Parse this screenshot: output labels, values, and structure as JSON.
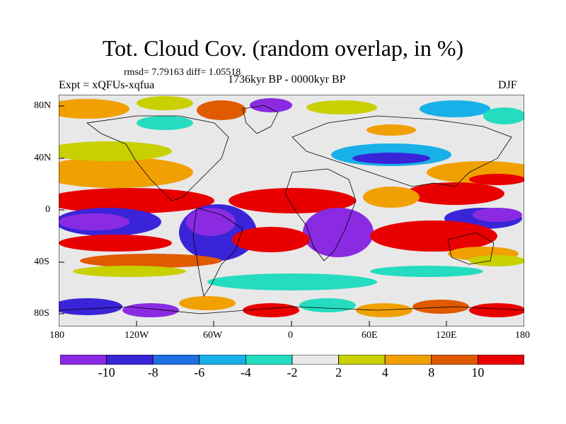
{
  "title": "Tot. Cloud Cov. (random overlap, in %)",
  "stats": "rmsd= 7.79163 diff= 1.05518",
  "expt": "Expt = xQFUs-xqfua",
  "period": "1736kyr BP - 0000kyr BP",
  "season": "DJF",
  "lat_ticks": [
    "80N",
    "40N",
    "0",
    "40S",
    "80S"
  ],
  "lon_ticks": [
    "180",
    "120W",
    "60W",
    "0",
    "60E",
    "120E",
    "180"
  ],
  "colorbar": {
    "colors": [
      "#8a2be2",
      "#3a24d8",
      "#1f6fe0",
      "#18b0e8",
      "#25dcc0",
      "#e8e8e8",
      "#c8d000",
      "#f0a000",
      "#e05a00",
      "#e80000"
    ],
    "labels": [
      "-10",
      "-8",
      "-6",
      "-4",
      "-2",
      "2",
      "4",
      "8",
      "10"
    ]
  }
}
